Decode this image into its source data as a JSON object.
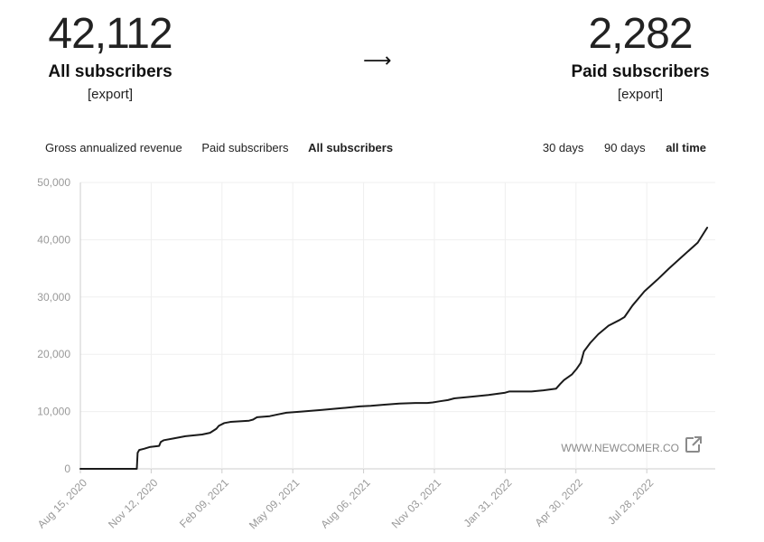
{
  "stats": {
    "all": {
      "number": "42,112",
      "label": "All subscribers",
      "export": "[export]"
    },
    "arrow": "⟶",
    "paid": {
      "number": "2,282",
      "label": "Paid subscribers",
      "export": "[export]"
    }
  },
  "tabs": {
    "metrics": [
      {
        "label": "Gross annualized revenue",
        "active": false
      },
      {
        "label": "Paid subscribers",
        "active": false
      },
      {
        "label": "All subscribers",
        "active": true
      }
    ],
    "ranges": [
      {
        "label": "30 days",
        "active": false
      },
      {
        "label": "90 days",
        "active": false
      },
      {
        "label": "all time",
        "active": true
      }
    ]
  },
  "watermark": "WWW.NEWCOMER.CO",
  "chart_data": {
    "type": "line",
    "title": "",
    "xlabel": "",
    "ylabel": "",
    "ylim": [
      0,
      50000
    ],
    "y_ticks": [
      "0",
      "10,000",
      "20,000",
      "30,000",
      "40,000",
      "50,000"
    ],
    "x_ticks": [
      "Aug 15, 2020",
      "Nov 12, 2020",
      "Feb 09, 2021",
      "May 09, 2021",
      "Aug 06, 2021",
      "Nov 03, 2021",
      "Jan 31, 2022",
      "Apr 30, 2022",
      "Jul 28, 2022"
    ],
    "grid": true,
    "series": [
      {
        "color": "#1a1a1a",
        "x": [
          "2020-08-15",
          "2020-09-30",
          "2020-10-25",
          "2020-10-26",
          "2020-10-28",
          "2020-11-03",
          "2020-11-10",
          "2020-11-22",
          "2020-11-24",
          "2020-11-28",
          "2020-12-10",
          "2020-12-25",
          "2021-01-15",
          "2021-01-25",
          "2021-02-02",
          "2021-02-05",
          "2021-02-12",
          "2021-02-20",
          "2021-03-15",
          "2021-03-20",
          "2021-03-25",
          "2021-04-10",
          "2021-04-20",
          "2021-05-01",
          "2021-05-20",
          "2021-06-15",
          "2021-07-10",
          "2021-08-01",
          "2021-08-15",
          "2021-09-01",
          "2021-09-20",
          "2021-10-10",
          "2021-10-25",
          "2021-11-01",
          "2021-11-10",
          "2021-11-20",
          "2021-11-28",
          "2021-12-20",
          "2022-01-10",
          "2022-01-31",
          "2022-02-05",
          "2022-03-05",
          "2022-03-20",
          "2022-04-05",
          "2022-04-10",
          "2022-04-15",
          "2022-04-25",
          "2022-05-01",
          "2022-05-06",
          "2022-05-10",
          "2022-05-18",
          "2022-05-28",
          "2022-06-10",
          "2022-06-24",
          "2022-06-30",
          "2022-07-10",
          "2022-07-25",
          "2022-08-10",
          "2022-08-25",
          "2022-09-10",
          "2022-09-30",
          "2022-10-12"
        ],
        "y": [
          0,
          0,
          0,
          2800,
          3300,
          3500,
          3800,
          4000,
          4700,
          5000,
          5300,
          5700,
          6000,
          6300,
          7000,
          7500,
          8000,
          8200,
          8400,
          8600,
          9000,
          9200,
          9500,
          9800,
          10000,
          10300,
          10600,
          10900,
          11000,
          11200,
          11400,
          11500,
          11500,
          11600,
          11800,
          12000,
          12300,
          12600,
          12900,
          13300,
          13500,
          13500,
          13700,
          14000,
          14800,
          15500,
          16500,
          17500,
          18500,
          20500,
          22000,
          23500,
          25000,
          26000,
          26500,
          28500,
          31000,
          33000,
          35000,
          37000,
          39500,
          42112
        ]
      }
    ]
  }
}
